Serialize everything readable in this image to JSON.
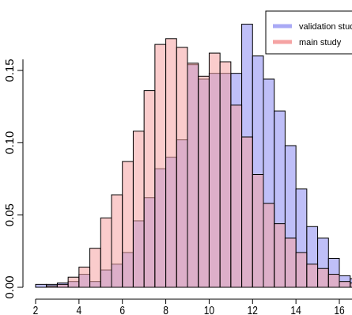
{
  "chart_data": {
    "type": "bar",
    "title": "",
    "xlabel": "",
    "ylabel": "",
    "xlim": [
      2,
      16
    ],
    "ylim": [
      0,
      0.18
    ],
    "xticks": [
      2,
      4,
      6,
      8,
      10,
      12,
      14,
      16
    ],
    "xtick_labels": [
      "2",
      "4",
      "6",
      "8",
      "10",
      "12",
      "14",
      "16"
    ],
    "yticks": [
      0,
      0.05,
      0.1,
      0.15
    ],
    "ytick_labels": [
      "0.00",
      "0.05",
      "0.10",
      "0.15"
    ],
    "grid": false,
    "legend_position": "top-right",
    "bin_start": 2,
    "bin_width": 0.5,
    "series": [
      {
        "name": "validation study",
        "color": "#a9a9f5",
        "values": [
          0.002,
          0.002,
          0.003,
          0.004,
          0.009,
          0.004,
          0.012,
          0.016,
          0.024,
          0.046,
          0.062,
          0.082,
          0.09,
          0.102,
          0.154,
          0.144,
          0.148,
          0.148,
          0.148,
          0.182,
          0.16,
          0.144,
          0.122,
          0.098,
          0.068,
          0.042,
          0.034,
          0.02,
          0.008,
          0.006,
          0.004,
          0.001
        ]
      },
      {
        "name": "main study",
        "color": "#f5a3a3",
        "values": [
          0.0,
          0.001,
          0.002,
          0.007,
          0.014,
          0.027,
          0.048,
          0.064,
          0.087,
          0.108,
          0.136,
          0.168,
          0.172,
          0.166,
          0.155,
          0.146,
          0.162,
          0.156,
          0.126,
          0.104,
          0.078,
          0.058,
          0.044,
          0.034,
          0.024,
          0.016,
          0.013,
          0.009,
          0.004,
          0.003,
          0.002,
          0.001
        ]
      }
    ]
  }
}
